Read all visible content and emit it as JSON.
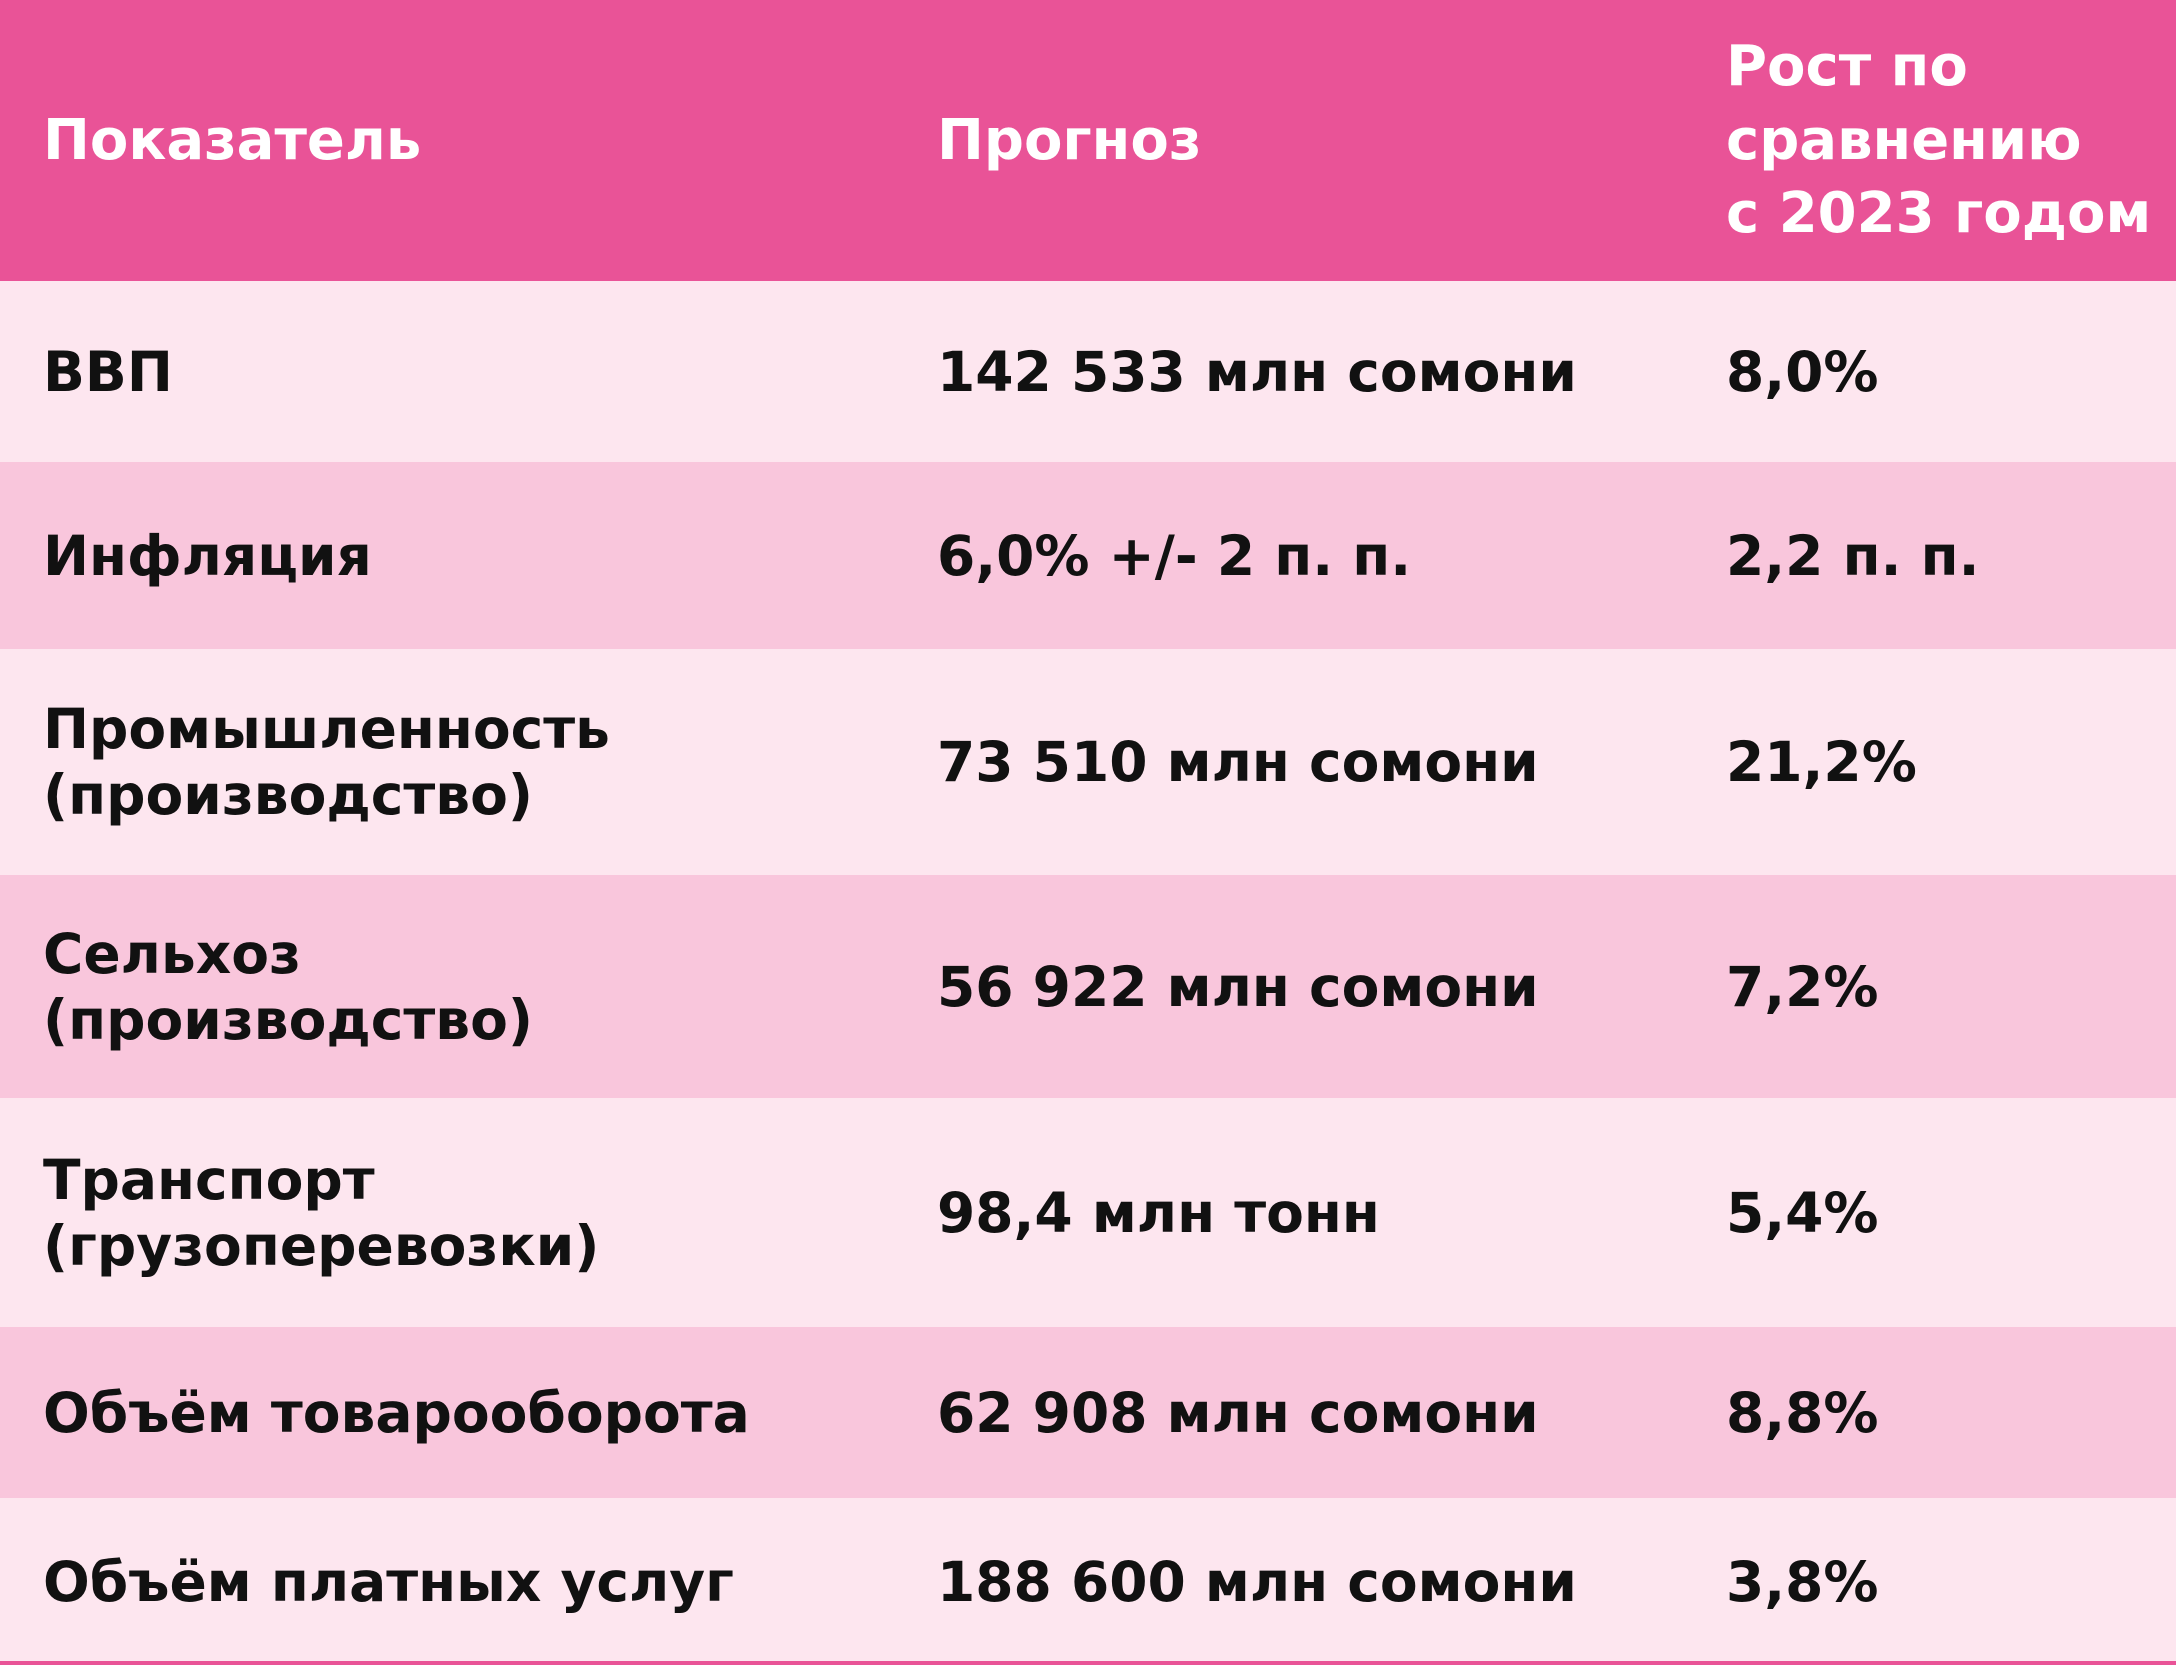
{
  "table": {
    "headers": [
      "Показатель",
      "Прогноз",
      "Рост по\nсравнению\nс 2023 годом"
    ],
    "rows": [
      [
        "ВВП",
        "142 533 млн сомони",
        "8,0%"
      ],
      [
        "Инфляция",
        "6,0% +/- 2 п. п.",
        "2,2 п. п."
      ],
      [
        "Промышленность\n(производство)",
        "73 510 млн сомони",
        "21,2%"
      ],
      [
        "Сельхоз\n(производство)",
        "56 922 млн сомони",
        "7,2%"
      ],
      [
        "Транспорт\n(грузоперевозки)",
        "98,4 млн тонн",
        "5,4%"
      ],
      [
        "Объём товарооборота",
        "62 908 млн сомони",
        "8,8%"
      ],
      [
        "Объём платных услуг",
        "188 600 млн сомони",
        "3,8%"
      ]
    ]
  },
  "colors": {
    "header_bg": "#e95397",
    "row_light": "#fde6ef",
    "row_dark": "#f9c6dc",
    "text": "#111111"
  }
}
